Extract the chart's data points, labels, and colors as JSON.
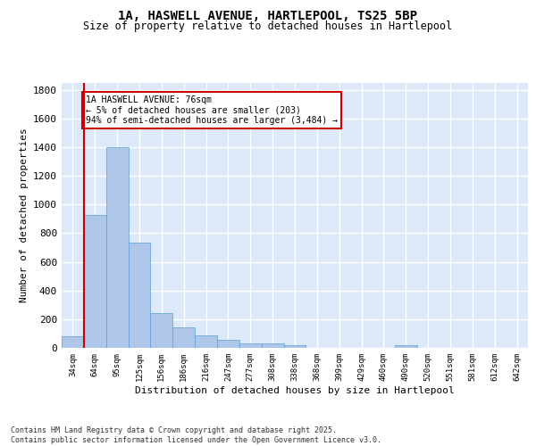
{
  "title_line1": "1A, HASWELL AVENUE, HARTLEPOOL, TS25 5BP",
  "title_line2": "Size of property relative to detached houses in Hartlepool",
  "xlabel": "Distribution of detached houses by size in Hartlepool",
  "ylabel": "Number of detached properties",
  "categories": [
    "34sqm",
    "64sqm",
    "95sqm",
    "125sqm",
    "156sqm",
    "186sqm",
    "216sqm",
    "247sqm",
    "277sqm",
    "308sqm",
    "338sqm",
    "368sqm",
    "399sqm",
    "429sqm",
    "460sqm",
    "490sqm",
    "520sqm",
    "551sqm",
    "581sqm",
    "612sqm",
    "642sqm"
  ],
  "values": [
    80,
    925,
    1400,
    735,
    245,
    140,
    85,
    55,
    30,
    30,
    18,
    0,
    0,
    0,
    0,
    18,
    0,
    0,
    0,
    0,
    0
  ],
  "bar_color": "#aec6e8",
  "bar_edge_color": "#5a9fd4",
  "background_color": "#dde8f8",
  "grid_color": "#ffffff",
  "annotation_text": "1A HASWELL AVENUE: 76sqm\n← 5% of detached houses are smaller (203)\n94% of semi-detached houses are larger (3,484) →",
  "annotation_box_color": "#ffffff",
  "annotation_box_edge": "#cc0000",
  "redline_color": "#cc0000",
  "ylim": [
    0,
    1850
  ],
  "yticks": [
    0,
    200,
    400,
    600,
    800,
    1000,
    1200,
    1400,
    1600,
    1800
  ],
  "footer_line1": "Contains HM Land Registry data © Crown copyright and database right 2025.",
  "footer_line2": "Contains public sector information licensed under the Open Government Licence v3.0."
}
